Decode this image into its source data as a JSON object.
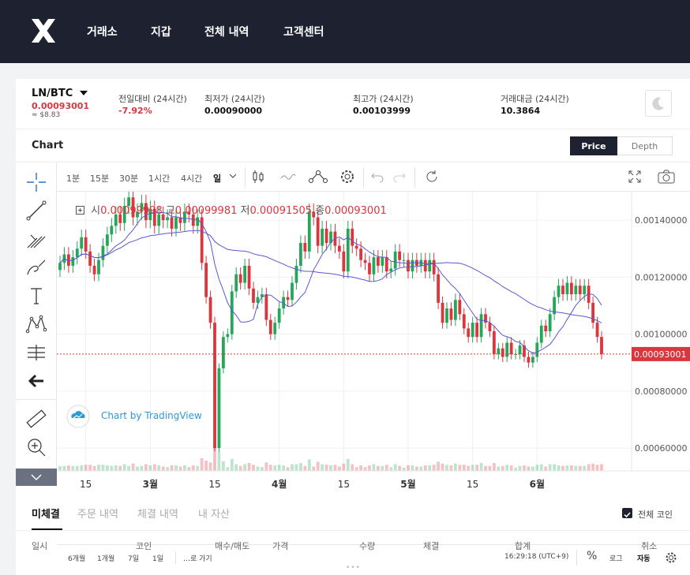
{
  "nav": {
    "items": [
      "거래소",
      "지갑",
      "전체 내역",
      "고객센터"
    ]
  },
  "ticker": {
    "pair": "LN/BTC",
    "price": "0.00093001",
    "usd": "≈ $8.83",
    "change_label": "전일대비 (24시간)",
    "change_value": "-7.92%",
    "low_label": "최저가 (24시간)",
    "low_value": "0.00090000",
    "high_label": "최고가 (24시간)",
    "high_value": "0.00103999",
    "volume_label": "거래대금 (24시간)",
    "volume_value": "10.3864"
  },
  "chart_section": {
    "title": "Chart",
    "price_tab": "Price",
    "depth_tab": "Depth"
  },
  "intervals": [
    "1분",
    "15분",
    "30분",
    "1시간",
    "4시간",
    "일"
  ],
  "ohlc": {
    "open_label": "시",
    "open": "0.00099998",
    "high_label": "고",
    "high": "0.00099981",
    "low_label": "저",
    "low": "0.00091505",
    "close_label": "종",
    "close": "0.00093001"
  },
  "watermark": "Chart by TradingView",
  "ranges": [
    "6개월",
    "1개월",
    "7일",
    "1일"
  ],
  "goto": "…로 가기",
  "time_readout": "16:29:18 (UTC+9)",
  "percent": "%",
  "log": "로그",
  "auto": "자동",
  "colors": {
    "up": "#26a65b",
    "down": "#d9363e",
    "ma_fast": "#5b57d1"
  },
  "chart_data": {
    "type": "line",
    "title": "",
    "x_ticks": [
      "15",
      "3월",
      "15",
      "4월",
      "15",
      "5월",
      "15",
      "6월"
    ],
    "y_ticks": [
      0.0014,
      0.0012,
      0.001,
      0.0008,
      0.0006
    ],
    "y_tick_labels": [
      "0.00140000",
      "0.00120000",
      "0.00100000",
      "0.00080000",
      "0.00060000"
    ],
    "ylim": [
      0.00052,
      0.0015
    ],
    "last_price": 0.00093001,
    "last_price_label": "0.00093001",
    "series": [
      {
        "values": [
          0.00125,
          0.00128,
          0.00124,
          0.00127,
          0.0013,
          0.00134,
          0.00129,
          0.00124,
          0.00121,
          0.00126,
          0.00131,
          0.00135,
          0.00138,
          0.00142,
          0.00139,
          0.00145,
          0.00148,
          0.00141,
          0.00143,
          0.00146,
          0.0014,
          0.00144,
          0.00138,
          0.00142,
          0.0014,
          0.00141,
          0.00137,
          0.00141,
          0.00139,
          0.00143,
          0.00142,
          0.00138,
          0.00141,
          0.00125,
          0.00113,
          0.00104,
          0.0006,
          0.00088,
          0.00099,
          0.001,
          0.00115,
          0.00121,
          0.00118,
          0.00124,
          0.00116,
          0.00111,
          0.00113,
          0.00114,
          0.00105,
          0.001,
          0.00104,
          0.00109,
          0.00113,
          0.00112,
          0.00118,
          0.00124,
          0.00132,
          0.00129,
          0.00143,
          0.00141,
          0.00131,
          0.00137,
          0.00132,
          0.00136,
          0.00131,
          0.00129,
          0.00122,
          0.00137,
          0.00131,
          0.0013,
          0.00126,
          0.00125,
          0.00121,
          0.00127,
          0.00124,
          0.00127,
          0.00122,
          0.00123,
          0.00129,
          0.00126,
          0.00126,
          0.00122,
          0.00126,
          0.00124,
          0.00126,
          0.00122,
          0.00126,
          0.00121,
          0.00111,
          0.00104,
          0.00109,
          0.00105,
          0.00112,
          0.00107,
          0.00102,
          0.00099,
          0.00104,
          0.00099,
          0.00107,
          0.00104,
          0.00101,
          0.00093,
          0.00095,
          0.00092,
          0.00097,
          0.00093,
          0.00093,
          0.00096,
          0.00092,
          0.0009,
          0.00092,
          0.00097,
          0.00103,
          0.00101,
          0.00107,
          0.00113,
          0.00117,
          0.00114,
          0.00118,
          0.00114,
          0.00117,
          0.00114,
          0.00117,
          0.00111,
          0.00104,
          0.00099,
          0.00093
        ]
      }
    ]
  },
  "orders": {
    "tabs": [
      "미체결",
      "주문 내역",
      "체결 내역",
      "내 자산"
    ],
    "all_coins": "전체 코인",
    "columns": [
      "일시",
      "코인",
      "매수/매도",
      "가격",
      "수량",
      "체결",
      "합계",
      "취소"
    ]
  }
}
